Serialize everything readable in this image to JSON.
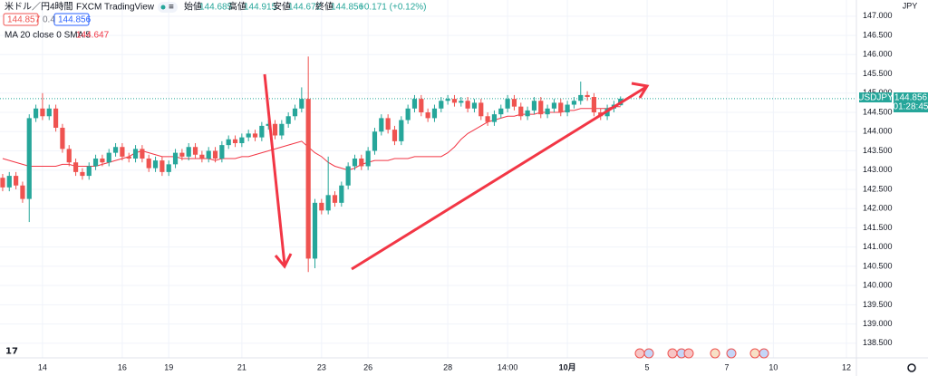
{
  "chart_data": {
    "type": "candlestick",
    "header": {
      "symbol": "米ドル／円",
      "interval": "4時間",
      "exchange": "FXCM",
      "source": "TradingView",
      "open_label": "始値",
      "high_label": "高値",
      "low_label": "安値",
      "close_label": "終値",
      "change": "+0.171 (+0.12%)",
      "sell": "144.857",
      "spread": "0.4",
      "buy": "144.856"
    },
    "currency": "JPY",
    "price_box": {
      "symbol": "USDJPY",
      "countdown": "01:28:45"
    },
    "series": [
      {
        "name": "USDJPY",
        "type": "candlestick",
        "up_color": "#26a69a",
        "down_color": "#ef5350",
        "open": [
          142.8,
          142.55,
          142.85,
          142.6,
          142.25,
          144.35,
          144.6,
          144.4,
          144.6,
          144.1,
          143.55,
          143.2,
          142.95,
          142.85,
          143.1,
          143.3,
          143.2,
          143.45,
          143.6,
          143.35,
          143.3,
          143.55,
          143.3,
          143.05,
          143.25,
          142.95,
          143.15,
          143.45,
          143.35,
          143.6,
          143.4,
          143.3,
          143.5,
          143.3,
          143.65,
          143.8,
          143.7,
          143.85,
          143.95,
          143.85,
          144.15,
          144.2,
          143.9,
          144.2,
          144.4,
          144.6,
          144.85,
          140.7,
          142.15,
          141.95,
          142.35,
          142.15,
          142.6,
          143.1,
          143.3,
          143.1,
          143.5,
          144.0,
          144.35,
          144.05,
          143.75,
          144.3,
          144.6,
          144.85,
          144.5,
          144.35,
          144.6,
          144.8,
          144.85,
          144.75,
          144.8,
          144.6,
          144.75,
          144.4,
          144.25,
          144.45,
          144.6,
          144.85,
          144.65,
          144.4,
          144.55,
          144.8,
          144.45,
          144.6,
          144.75,
          144.5,
          144.7,
          144.8,
          144.95,
          144.9,
          144.5,
          144.4,
          144.6,
          144.685
        ],
        "high": [
          142.9,
          142.95,
          142.95,
          142.7,
          144.45,
          144.7,
          145.0,
          144.7,
          144.7,
          144.2,
          143.65,
          143.3,
          143.05,
          143.2,
          143.4,
          143.4,
          143.55,
          143.7,
          143.7,
          143.45,
          143.65,
          143.65,
          143.4,
          143.35,
          143.35,
          143.25,
          143.55,
          143.55,
          143.7,
          143.7,
          143.5,
          143.6,
          143.6,
          143.75,
          143.9,
          143.9,
          143.95,
          144.05,
          144.05,
          144.25,
          144.3,
          144.3,
          144.3,
          144.5,
          144.7,
          145.15,
          145.95,
          142.25,
          142.25,
          143.35,
          142.45,
          142.7,
          143.2,
          143.4,
          143.4,
          143.6,
          144.1,
          144.45,
          144.45,
          144.15,
          144.4,
          144.7,
          144.95,
          144.95,
          144.6,
          144.7,
          144.9,
          144.95,
          144.95,
          144.9,
          144.9,
          144.85,
          144.85,
          144.5,
          144.55,
          144.7,
          144.95,
          144.95,
          144.75,
          144.65,
          144.9,
          144.9,
          144.7,
          144.85,
          144.85,
          144.8,
          144.9,
          145.3,
          145.05,
          145.0,
          144.6,
          144.7,
          144.8,
          144.915
        ],
        "low": [
          142.45,
          142.45,
          142.5,
          142.15,
          141.65,
          144.25,
          144.3,
          144.3,
          144.0,
          143.45,
          143.1,
          142.85,
          142.75,
          142.75,
          143.0,
          143.1,
          143.1,
          143.35,
          143.25,
          143.2,
          143.2,
          143.2,
          142.95,
          142.95,
          142.85,
          142.85,
          143.05,
          143.25,
          143.25,
          143.3,
          143.2,
          143.2,
          143.2,
          143.2,
          143.55,
          143.6,
          143.6,
          143.75,
          143.75,
          143.75,
          144.05,
          143.8,
          143.8,
          144.1,
          144.3,
          144.5,
          140.35,
          140.45,
          141.85,
          141.85,
          142.05,
          142.05,
          142.5,
          143.0,
          143.0,
          143.0,
          143.4,
          143.9,
          143.95,
          143.65,
          143.65,
          144.2,
          144.5,
          144.4,
          144.25,
          144.25,
          144.5,
          144.7,
          144.65,
          144.65,
          144.5,
          144.5,
          144.3,
          144.15,
          144.15,
          144.35,
          144.5,
          144.55,
          144.3,
          144.3,
          144.45,
          144.35,
          144.35,
          144.5,
          144.4,
          144.4,
          144.6,
          144.7,
          144.8,
          144.4,
          144.3,
          144.3,
          144.5,
          144.672
        ],
        "close": [
          142.55,
          142.85,
          142.6,
          142.25,
          144.35,
          144.6,
          144.4,
          144.6,
          144.1,
          143.55,
          143.2,
          142.95,
          142.85,
          143.1,
          143.3,
          143.2,
          143.45,
          143.6,
          143.35,
          143.3,
          143.55,
          143.3,
          143.05,
          143.25,
          142.95,
          143.15,
          143.45,
          143.35,
          143.6,
          143.4,
          143.3,
          143.5,
          143.3,
          143.65,
          143.8,
          143.7,
          143.85,
          143.95,
          143.85,
          144.15,
          144.2,
          143.9,
          144.2,
          144.4,
          144.6,
          144.85,
          140.7,
          142.15,
          141.95,
          142.35,
          142.15,
          142.6,
          143.1,
          143.3,
          143.1,
          143.5,
          144.0,
          144.35,
          144.05,
          143.75,
          144.3,
          144.6,
          144.85,
          144.5,
          144.35,
          144.6,
          144.8,
          144.85,
          144.75,
          144.8,
          144.6,
          144.75,
          144.4,
          144.25,
          144.45,
          144.6,
          144.85,
          144.65,
          144.4,
          144.55,
          144.8,
          144.45,
          144.6,
          144.75,
          144.5,
          144.7,
          144.8,
          144.95,
          144.9,
          144.5,
          144.4,
          144.6,
          144.7,
          144.856
        ]
      },
      {
        "name": "MA 20 close 0 SMA 5",
        "type": "line",
        "color": "#f23645",
        "values": [
          143.3,
          143.25,
          143.2,
          143.15,
          143.1,
          143.1,
          143.1,
          143.1,
          143.1,
          143.15,
          143.15,
          143.1,
          143.1,
          143.1,
          143.1,
          143.15,
          143.2,
          143.25,
          143.3,
          143.35,
          143.45,
          143.5,
          143.45,
          143.4,
          143.35,
          143.35,
          143.35,
          143.3,
          143.3,
          143.3,
          143.3,
          143.3,
          143.25,
          143.3,
          143.3,
          143.3,
          143.35,
          143.35,
          143.4,
          143.45,
          143.5,
          143.55,
          143.6,
          143.65,
          143.7,
          143.75,
          143.6,
          143.45,
          143.35,
          143.2,
          143.1,
          143.05,
          143.0,
          143.05,
          143.15,
          143.2,
          143.25,
          143.25,
          143.25,
          143.3,
          143.3,
          143.3,
          143.35,
          143.35,
          143.35,
          143.35,
          143.35,
          143.45,
          143.6,
          143.8,
          143.95,
          144.05,
          144.15,
          144.25,
          144.3,
          144.35,
          144.4,
          144.4,
          144.45,
          144.45,
          144.45,
          144.5,
          144.5,
          144.5,
          144.5,
          144.55,
          144.55,
          144.6,
          144.6,
          144.6,
          144.6,
          144.6,
          144.65,
          144.647
        ]
      }
    ],
    "xlim": [
      -0.4,
      128.5
    ],
    "xticks": [
      {
        "value": 6,
        "label": "14"
      },
      {
        "value": 18,
        "label": "16"
      },
      {
        "value": 25,
        "label": "19"
      },
      {
        "value": 36,
        "label": "21"
      },
      {
        "value": 48,
        "label": "23"
      },
      {
        "value": 55,
        "label": "26"
      },
      {
        "value": 67,
        "label": "28"
      },
      {
        "value": 76,
        "label": "14:00"
      },
      {
        "value": 85,
        "label": "10月"
      },
      {
        "value": 97,
        "label": "5"
      },
      {
        "value": 109,
        "label": "7"
      },
      {
        "value": 116,
        "label": "10"
      },
      {
        "value": 127,
        "label": "12"
      }
    ],
    "ylim": [
      138.12,
      147.42
    ],
    "yticks": [
      {
        "value": 138.5,
        "label": "138.500"
      },
      {
        "value": 139,
        "label": "139.000"
      },
      {
        "value": 139.5,
        "label": "139.500"
      },
      {
        "value": 140,
        "label": "140.000"
      },
      {
        "value": 140.5,
        "label": "140.500"
      },
      {
        "value": 141,
        "label": "141.000"
      },
      {
        "value": 141.5,
        "label": "141.500"
      },
      {
        "value": 142,
        "label": "142.000"
      },
      {
        "value": 142.5,
        "label": "142.500"
      },
      {
        "value": 143,
        "label": "143.000"
      },
      {
        "value": 143.5,
        "label": "143.500"
      },
      {
        "value": 144,
        "label": "144.000"
      },
      {
        "value": 144.5,
        "label": "144.500"
      },
      {
        "value": 145,
        "label": "145.000"
      },
      {
        "value": 145.5,
        "label": "145.500"
      },
      {
        "value": 146,
        "label": "146.000"
      },
      {
        "value": 146.5,
        "label": "146.500"
      },
      {
        "value": 147,
        "label": "147.000"
      }
    ],
    "grid": true
  }
}
